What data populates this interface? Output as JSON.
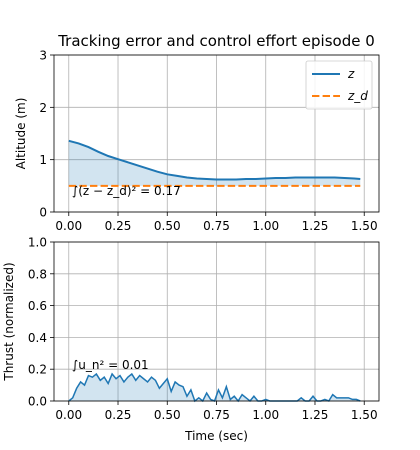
{
  "chart_data": [
    {
      "type": "line",
      "title": "Tracking error and control effort episode  0",
      "xlabel": "",
      "ylabel": "Altitude (m)",
      "xlim": [
        -0.075,
        1.575
      ],
      "ylim": [
        0,
        3
      ],
      "xticks": [
        "0.00",
        "0.25",
        "0.50",
        "0.75",
        "1.00",
        "1.25",
        "1.50"
      ],
      "yticks": [
        "0",
        "1",
        "2",
        "3"
      ],
      "grid": true,
      "legend_position": "top-right",
      "annotation": "∫(z − z_d)² = 0.17",
      "series": [
        {
          "name": "z",
          "legend_label": "z",
          "color": "#1f77b4",
          "style": "solid",
          "x": [
            0.0,
            0.05,
            0.1,
            0.15,
            0.2,
            0.25,
            0.3,
            0.35,
            0.4,
            0.45,
            0.5,
            0.55,
            0.6,
            0.65,
            0.7,
            0.75,
            0.8,
            0.85,
            0.9,
            0.95,
            1.0,
            1.05,
            1.1,
            1.15,
            1.2,
            1.25,
            1.3,
            1.35,
            1.4,
            1.45,
            1.48
          ],
          "values": [
            1.36,
            1.31,
            1.24,
            1.15,
            1.07,
            1.01,
            0.95,
            0.89,
            0.83,
            0.77,
            0.72,
            0.69,
            0.66,
            0.64,
            0.63,
            0.62,
            0.62,
            0.62,
            0.63,
            0.63,
            0.64,
            0.65,
            0.65,
            0.66,
            0.66,
            0.66,
            0.66,
            0.66,
            0.65,
            0.64,
            0.63
          ]
        },
        {
          "name": "z_d",
          "legend_label": "z_d",
          "color": "#ff7f0e",
          "style": "dashed",
          "x": [
            0.0,
            1.48
          ],
          "values": [
            0.5,
            0.5
          ]
        }
      ]
    },
    {
      "type": "area",
      "title": "",
      "xlabel": "Time (sec)",
      "ylabel": "Thrust (normalized)",
      "xlim": [
        -0.075,
        1.575
      ],
      "ylim": [
        0,
        1
      ],
      "xticks": [
        "0.00",
        "0.25",
        "0.50",
        "0.75",
        "1.00",
        "1.25",
        "1.50"
      ],
      "yticks": [
        "0.0",
        "0.2",
        "0.4",
        "0.6",
        "0.8",
        "1.0"
      ],
      "grid": true,
      "annotation": "∫u_n² = 0.01",
      "series": [
        {
          "name": "thrust",
          "color": "#1f77b4",
          "x": [
            0.0,
            0.02,
            0.04,
            0.06,
            0.08,
            0.1,
            0.12,
            0.14,
            0.16,
            0.18,
            0.2,
            0.22,
            0.24,
            0.26,
            0.28,
            0.3,
            0.32,
            0.34,
            0.36,
            0.38,
            0.4,
            0.42,
            0.44,
            0.46,
            0.48,
            0.5,
            0.52,
            0.54,
            0.56,
            0.58,
            0.6,
            0.62,
            0.64,
            0.66,
            0.68,
            0.7,
            0.72,
            0.74,
            0.76,
            0.78,
            0.8,
            0.82,
            0.84,
            0.86,
            0.88,
            0.9,
            0.92,
            0.94,
            0.96,
            0.98,
            1.0,
            1.02,
            1.04,
            1.06,
            1.08,
            1.1,
            1.12,
            1.14,
            1.16,
            1.18,
            1.2,
            1.22,
            1.24,
            1.26,
            1.28,
            1.3,
            1.32,
            1.34,
            1.36,
            1.38,
            1.4,
            1.42,
            1.44,
            1.46,
            1.48
          ],
          "values": [
            0.0,
            0.02,
            0.08,
            0.12,
            0.1,
            0.16,
            0.15,
            0.17,
            0.13,
            0.15,
            0.11,
            0.17,
            0.14,
            0.16,
            0.12,
            0.15,
            0.17,
            0.13,
            0.16,
            0.14,
            0.12,
            0.15,
            0.13,
            0.08,
            0.11,
            0.14,
            0.06,
            0.12,
            0.1,
            0.09,
            0.03,
            0.07,
            0.0,
            0.02,
            0.0,
            0.05,
            0.01,
            0.0,
            0.07,
            0.02,
            0.09,
            0.01,
            0.03,
            0.0,
            0.04,
            0.02,
            0.0,
            0.03,
            0.0,
            0.0,
            0.01,
            0.0,
            0.0,
            0.0,
            0.0,
            0.0,
            0.0,
            0.0,
            0.0,
            0.02,
            0.0,
            0.0,
            0.03,
            0.0,
            0.0,
            0.01,
            0.0,
            0.04,
            0.02,
            0.02,
            0.02,
            0.02,
            0.01,
            0.01,
            0.0
          ]
        }
      ]
    }
  ]
}
